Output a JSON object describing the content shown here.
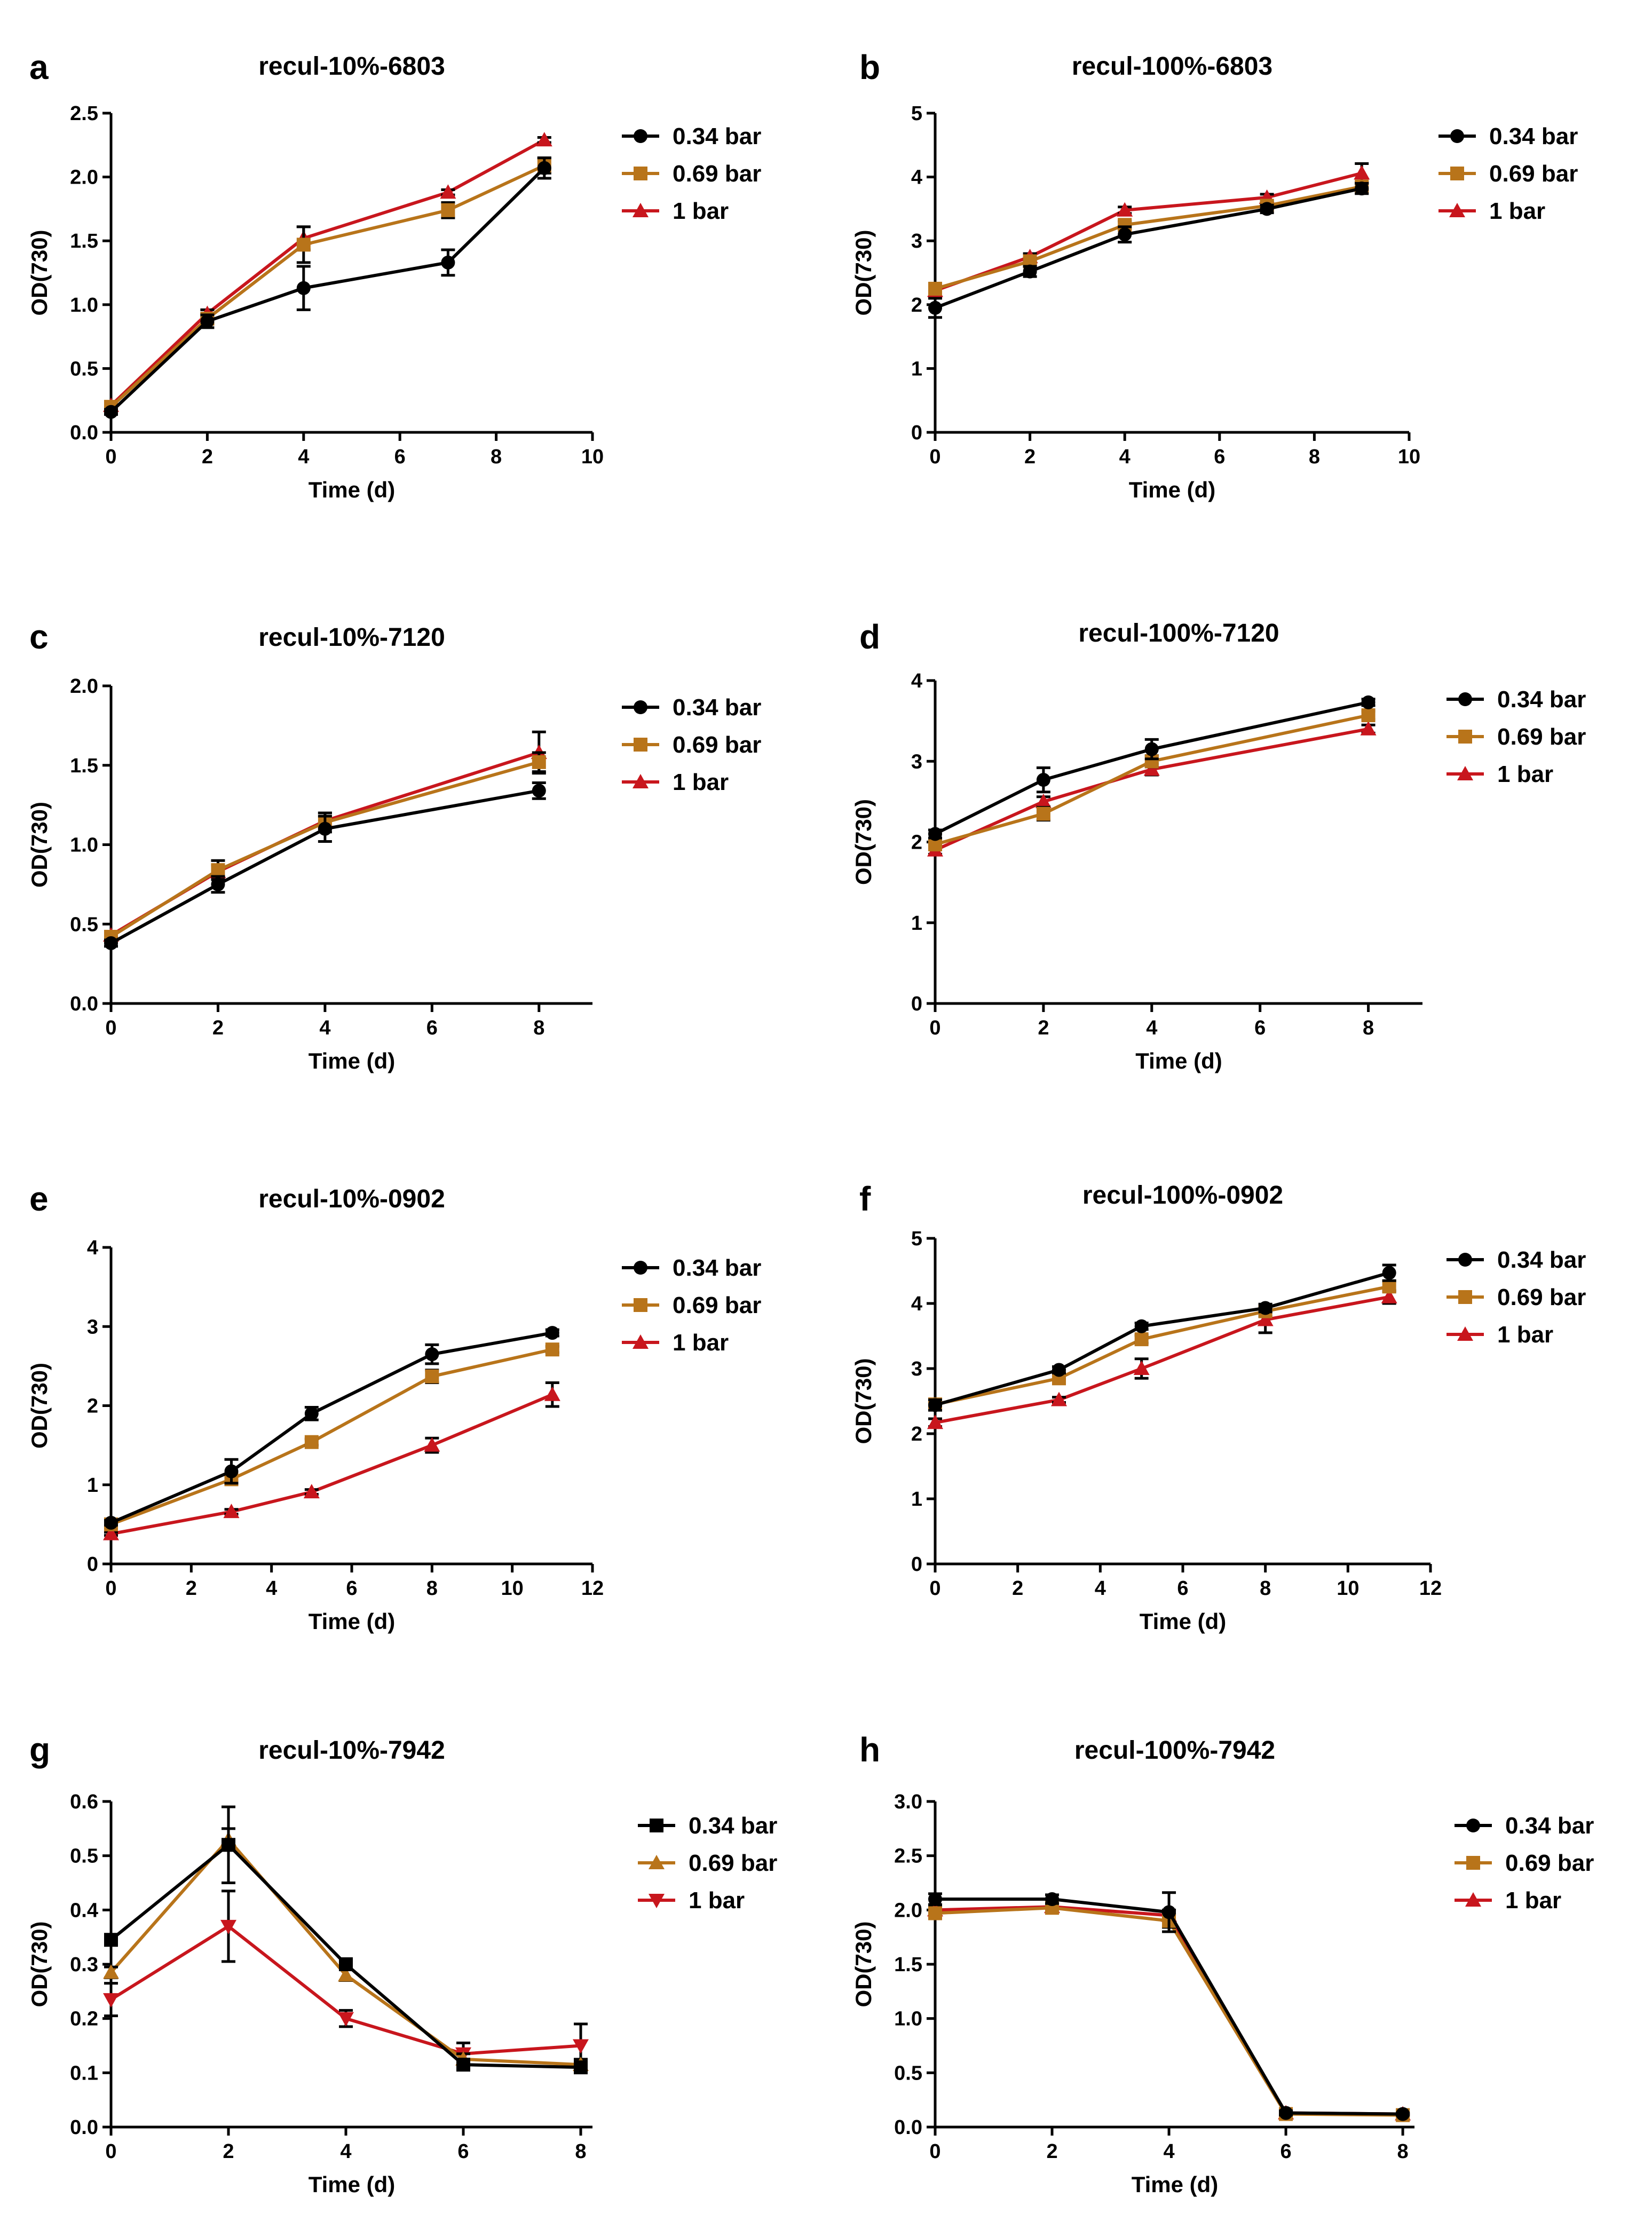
{
  "legend_labels": [
    "0.34 bar",
    "0.69 bar",
    "1 bar"
  ],
  "series_colors": [
    "#000000",
    "#b8741a",
    "#c8161d"
  ],
  "chart_data": [
    {
      "panel": "a",
      "type": "line",
      "title": "recul-10%-6803",
      "xlabel": "Time (d)",
      "ylabel": "OD(730)",
      "xlim": [
        0,
        10
      ],
      "ylim": [
        0,
        2.5
      ],
      "xticks": [
        0,
        2,
        4,
        6,
        8,
        10
      ],
      "yticks": [
        "0.0",
        "0.5",
        "1.0",
        "1.5",
        "2.0",
        "2.5"
      ],
      "x": [
        0,
        2,
        4,
        7,
        9
      ],
      "series": [
        {
          "name": "0.34 bar",
          "marker": "circle",
          "values": [
            0.16,
            0.87,
            1.13,
            1.33,
            2.07
          ],
          "errors": [
            0.02,
            0.05,
            0.17,
            0.1,
            0.08
          ]
        },
        {
          "name": "0.69 bar",
          "marker": "square",
          "values": [
            0.2,
            0.89,
            1.47,
            1.74,
            2.09
          ],
          "errors": [
            0.02,
            0.04,
            0.14,
            0.06,
            0.06
          ]
        },
        {
          "name": "1 bar",
          "marker": "triangle",
          "values": [
            0.21,
            0.93,
            1.52,
            1.88,
            2.29
          ],
          "errors": [
            0.01,
            0.03,
            0.09,
            0.02,
            0.02
          ]
        }
      ]
    },
    {
      "panel": "b",
      "type": "line",
      "title": "recul-100%-6803",
      "xlabel": "Time (d)",
      "ylabel": "OD(730)",
      "xlim": [
        0,
        10
      ],
      "ylim": [
        0,
        5
      ],
      "xticks": [
        0,
        2,
        4,
        6,
        8,
        10
      ],
      "yticks": [
        "0",
        "1",
        "2",
        "3",
        "4",
        "5"
      ],
      "x": [
        0,
        2,
        4,
        7,
        9
      ],
      "series": [
        {
          "name": "0.34 bar",
          "marker": "circle",
          "values": [
            1.95,
            2.52,
            3.1,
            3.5,
            3.82
          ],
          "errors": [
            0.15,
            0.08,
            0.12,
            0.06,
            0.08
          ]
        },
        {
          "name": "0.69 bar",
          "marker": "square",
          "values": [
            2.25,
            2.68,
            3.25,
            3.55,
            3.85
          ],
          "errors": [
            0.08,
            0.05,
            0.06,
            0.05,
            0.06
          ]
        },
        {
          "name": "1 bar",
          "marker": "triangle",
          "values": [
            2.22,
            2.75,
            3.48,
            3.68,
            4.06
          ],
          "errors": [
            0.05,
            0.05,
            0.05,
            0.05,
            0.15
          ]
        }
      ]
    },
    {
      "panel": "c",
      "type": "line",
      "title": "recul-10%-7120",
      "xlabel": "Time (d)",
      "ylabel": "OD(730)",
      "xlim": [
        0,
        9
      ],
      "ylim": [
        0,
        2.0
      ],
      "xticks": [
        0,
        2,
        4,
        6,
        8
      ],
      "yticks": [
        "0.0",
        "0.5",
        "1.0",
        "1.5",
        "2.0"
      ],
      "x": [
        0,
        2,
        4,
        8
      ],
      "series": [
        {
          "name": "0.34 bar",
          "marker": "circle",
          "values": [
            0.38,
            0.75,
            1.1,
            1.34
          ],
          "errors": [
            0.02,
            0.05,
            0.08,
            0.05
          ]
        },
        {
          "name": "0.69 bar",
          "marker": "square",
          "values": [
            0.42,
            0.84,
            1.14,
            1.52
          ],
          "errors": [
            0.02,
            0.06,
            0.06,
            0.06
          ]
        },
        {
          "name": "1 bar",
          "marker": "triangle",
          "values": [
            0.43,
            0.83,
            1.15,
            1.58
          ],
          "errors": [
            0.02,
            0.04,
            0.05,
            0.13
          ]
        }
      ]
    },
    {
      "panel": "d",
      "type": "line",
      "title": "recul-100%-7120",
      "xlabel": "Time (d)",
      "ylabel": "OD(730)",
      "xlim": [
        0,
        9
      ],
      "ylim": [
        0,
        4
      ],
      "xticks": [
        0,
        2,
        4,
        6,
        8
      ],
      "yticks": [
        "0",
        "1",
        "2",
        "3",
        "4"
      ],
      "x": [
        0,
        2,
        4,
        8
      ],
      "series": [
        {
          "name": "0.34 bar",
          "marker": "circle",
          "values": [
            2.1,
            2.77,
            3.15,
            3.73
          ],
          "errors": [
            0.05,
            0.15,
            0.12,
            0.04
          ]
        },
        {
          "name": "0.69 bar",
          "marker": "square",
          "values": [
            1.97,
            2.35,
            3.0,
            3.57
          ],
          "errors": [
            0.05,
            0.08,
            0.07,
            0.05
          ]
        },
        {
          "name": "1 bar",
          "marker": "triangle",
          "values": [
            1.9,
            2.5,
            2.9,
            3.4
          ],
          "errors": [
            0.05,
            0.06,
            0.07,
            0.05
          ]
        }
      ]
    },
    {
      "panel": "e",
      "type": "line",
      "title": "recul-10%-0902",
      "xlabel": "Time (d)",
      "ylabel": "OD(730)",
      "xlim": [
        0,
        12
      ],
      "ylim": [
        0,
        4
      ],
      "xticks": [
        0,
        2,
        4,
        6,
        8,
        10,
        12
      ],
      "yticks": [
        "0",
        "1",
        "2",
        "3",
        "4"
      ],
      "x": [
        0,
        3,
        5,
        8,
        11
      ],
      "series": [
        {
          "name": "0.34 bar",
          "marker": "circle",
          "values": [
            0.52,
            1.17,
            1.9,
            2.65,
            2.92
          ],
          "errors": [
            0.03,
            0.15,
            0.08,
            0.12,
            0.04
          ]
        },
        {
          "name": "0.69 bar",
          "marker": "square",
          "values": [
            0.5,
            1.07,
            1.54,
            2.37,
            2.71
          ],
          "errors": [
            0.03,
            0.06,
            0.04,
            0.08,
            0.04
          ]
        },
        {
          "name": "1 bar",
          "marker": "triangle",
          "values": [
            0.38,
            0.66,
            0.91,
            1.5,
            2.14
          ],
          "errors": [
            0.02,
            0.03,
            0.03,
            0.09,
            0.15
          ]
        }
      ]
    },
    {
      "panel": "f",
      "type": "line",
      "title": "recul-100%-0902",
      "xlabel": "Time (d)",
      "ylabel": "OD(730)",
      "xlim": [
        0,
        12
      ],
      "ylim": [
        0,
        5
      ],
      "xticks": [
        0,
        2,
        4,
        6,
        8,
        10,
        12
      ],
      "yticks": [
        "0",
        "1",
        "2",
        "3",
        "4",
        "5"
      ],
      "x": [
        0,
        3,
        5,
        8,
        11
      ],
      "series": [
        {
          "name": "0.34 bar",
          "marker": "circle",
          "values": [
            2.44,
            2.98,
            3.65,
            3.93,
            4.47
          ],
          "errors": [
            0.08,
            0.05,
            0.05,
            0.06,
            0.12
          ]
        },
        {
          "name": "0.69 bar",
          "marker": "square",
          "values": [
            2.45,
            2.85,
            3.45,
            3.88,
            4.26
          ],
          "errors": [
            0.05,
            0.05,
            0.06,
            0.08,
            0.08
          ]
        },
        {
          "name": "1 bar",
          "marker": "triangle",
          "values": [
            2.17,
            2.52,
            3.0,
            3.75,
            4.1
          ],
          "errors": [
            0.06,
            0.04,
            0.15,
            0.2,
            0.1
          ]
        }
      ]
    },
    {
      "panel": "g",
      "type": "line",
      "title": "recul-10%-7942",
      "xlabel": "Time (d)",
      "ylabel": "OD(730)",
      "xlim": [
        0,
        8.2
      ],
      "ylim": [
        0,
        0.6
      ],
      "xticks": [
        0,
        2,
        4,
        6,
        8
      ],
      "yticks": [
        "0.0",
        "0.1",
        "0.2",
        "0.3",
        "0.4",
        "0.5",
        "0.6"
      ],
      "x": [
        0,
        2,
        4,
        6,
        8
      ],
      "series": [
        {
          "name": "0.34 bar",
          "marker": "square",
          "values": [
            0.345,
            0.52,
            0.3,
            0.115,
            0.11
          ],
          "errors": [
            0.01,
            0.07,
            0.01,
            0.01,
            0.01
          ]
        },
        {
          "name": "0.69 bar",
          "marker": "triangle",
          "values": [
            0.285,
            0.53,
            0.28,
            0.125,
            0.115
          ],
          "errors": [
            0.01,
            0.02,
            0.01,
            0.01,
            0.01
          ]
        },
        {
          "name": "1 bar",
          "marker": "triangle-down",
          "values": [
            0.235,
            0.37,
            0.2,
            0.135,
            0.15
          ],
          "errors": [
            0.03,
            0.065,
            0.015,
            0.02,
            0.04
          ]
        }
      ]
    },
    {
      "panel": "h",
      "type": "line",
      "title": "recul-100%-7942",
      "xlabel": "Time (d)",
      "ylabel": "OD(730)",
      "xlim": [
        0,
        8.2
      ],
      "ylim": [
        0,
        3.0
      ],
      "xticks": [
        0,
        2,
        4,
        6,
        8
      ],
      "yticks": [
        "0.0",
        "0.5",
        "1.0",
        "1.5",
        "2.0",
        "2.5",
        "3.0"
      ],
      "x": [
        0,
        2,
        4,
        6,
        8
      ],
      "series": [
        {
          "name": "0.34 bar",
          "marker": "circle",
          "values": [
            2.1,
            2.1,
            1.98,
            0.13,
            0.12
          ],
          "errors": [
            0.05,
            0.04,
            0.18,
            0.02,
            0.01
          ]
        },
        {
          "name": "0.69 bar",
          "marker": "square",
          "values": [
            1.97,
            2.02,
            1.9,
            0.12,
            0.11
          ],
          "errors": [
            0.05,
            0.05,
            0.06,
            0.01,
            0.01
          ]
        },
        {
          "name": "1 bar",
          "marker": "triangle",
          "values": [
            2.0,
            2.03,
            1.95,
            0.13,
            0.12
          ],
          "errors": [
            0.03,
            0.03,
            0.05,
            0.01,
            0.01
          ]
        }
      ]
    }
  ]
}
